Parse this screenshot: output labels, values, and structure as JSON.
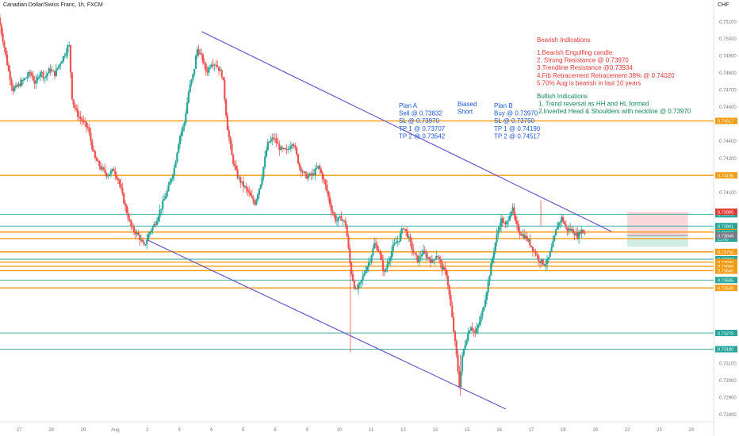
{
  "header": {
    "symbol_title": "Canadian Dollar/Swiss Franc, 1h, FXCM",
    "currency": "CHF"
  },
  "colors": {
    "up": "#26a69a",
    "down": "#ef5350",
    "trendline": "#6a5acd",
    "resistance": "#f39c12",
    "support": "#26a69a",
    "annot_red": "#e53935",
    "annot_blue": "#1e5bd8",
    "annot_green": "#138a5a"
  },
  "chart_data": {
    "type": "candlestick",
    "yaxis": {
      "ticks": [
        "0.75100",
        "0.75000",
        "0.74900",
        "0.74800",
        "0.74700",
        "0.74600",
        "0.74400",
        "0.74300",
        "0.74100",
        "0.73100",
        "0.73000",
        "0.72900",
        "0.72800"
      ],
      "ylim": [
        0.7276,
        0.7516
      ]
    },
    "xaxis": {
      "ticks": [
        {
          "label": "27",
          "day": 0
        },
        {
          "label": "28",
          "day": 1
        },
        {
          "label": "29",
          "day": 2
        },
        {
          "label": "Aug",
          "day": 3
        },
        {
          "label": "2",
          "day": 4
        },
        {
          "label": "3",
          "day": 5
        },
        {
          "label": "4",
          "day": 6
        },
        {
          "label": "5",
          "day": 7
        },
        {
          "label": "6",
          "day": 8
        },
        {
          "label": "9",
          "day": 9
        },
        {
          "label": "10",
          "day": 10
        },
        {
          "label": "11",
          "day": 11
        },
        {
          "label": "12",
          "day": 12
        },
        {
          "label": "13",
          "day": 13
        },
        {
          "label": "15",
          "day": 14
        },
        {
          "label": "16",
          "day": 15
        },
        {
          "label": "17",
          "day": 16
        },
        {
          "label": "18",
          "day": 17
        },
        {
          "label": "19",
          "day": 18
        },
        {
          "label": "22",
          "day": 19
        },
        {
          "label": "23",
          "day": 20
        },
        {
          "label": "24",
          "day": 21
        }
      ],
      "xlim": [
        -0.6,
        21.7
      ]
    },
    "price_path": [
      [
        -0.6,
        0.7512
      ],
      [
        -0.45,
        0.7498
      ],
      [
        -0.3,
        0.7482
      ],
      [
        -0.15,
        0.747
      ],
      [
        0.0,
        0.7472
      ],
      [
        0.2,
        0.7476
      ],
      [
        0.4,
        0.748
      ],
      [
        0.55,
        0.7473
      ],
      [
        0.7,
        0.7481
      ],
      [
        0.85,
        0.7477
      ],
      [
        1.0,
        0.7482
      ],
      [
        1.15,
        0.7479
      ],
      [
        1.3,
        0.7485
      ],
      [
        1.45,
        0.749
      ],
      [
        1.6,
        0.7497
      ],
      [
        1.7,
        0.7464
      ],
      [
        1.85,
        0.7456
      ],
      [
        2.0,
        0.7452
      ],
      [
        2.2,
        0.7447
      ],
      [
        2.4,
        0.743
      ],
      [
        2.6,
        0.7424
      ],
      [
        2.8,
        0.742
      ],
      [
        3.0,
        0.7423
      ],
      [
        3.15,
        0.7417
      ],
      [
        3.35,
        0.7402
      ],
      [
        3.55,
        0.7389
      ],
      [
        3.75,
        0.7385
      ],
      [
        3.95,
        0.7378
      ],
      [
        4.1,
        0.7386
      ],
      [
        4.3,
        0.7392
      ],
      [
        4.5,
        0.7402
      ],
      [
        4.7,
        0.7412
      ],
      [
        4.9,
        0.7425
      ],
      [
        5.05,
        0.7442
      ],
      [
        5.2,
        0.745
      ],
      [
        5.35,
        0.747
      ],
      [
        5.5,
        0.748
      ],
      [
        5.6,
        0.7494
      ],
      [
        5.75,
        0.7489
      ],
      [
        5.9,
        0.748
      ],
      [
        6.05,
        0.7486
      ],
      [
        6.2,
        0.7485
      ],
      [
        6.4,
        0.7478
      ],
      [
        6.55,
        0.7448
      ],
      [
        6.7,
        0.743
      ],
      [
        6.85,
        0.742
      ],
      [
        7.0,
        0.7415
      ],
      [
        7.2,
        0.741
      ],
      [
        7.4,
        0.7403
      ],
      [
        7.6,
        0.7416
      ],
      [
        7.8,
        0.7438
      ],
      [
        8.0,
        0.7442
      ],
      [
        8.2,
        0.7435
      ],
      [
        8.4,
        0.7434
      ],
      [
        8.6,
        0.744
      ],
      [
        8.8,
        0.7425
      ],
      [
        9.0,
        0.7419
      ],
      [
        9.2,
        0.742
      ],
      [
        9.4,
        0.7425
      ],
      [
        9.6,
        0.7415
      ],
      [
        9.8,
        0.74
      ],
      [
        9.95,
        0.7393
      ],
      [
        10.1,
        0.7395
      ],
      [
        10.25,
        0.7391
      ],
      [
        10.4,
        0.7365
      ],
      [
        10.55,
        0.7352
      ],
      [
        10.7,
        0.7356
      ],
      [
        10.85,
        0.7364
      ],
      [
        11.0,
        0.737
      ],
      [
        11.15,
        0.738
      ],
      [
        11.3,
        0.7375
      ],
      [
        11.45,
        0.7362
      ],
      [
        11.6,
        0.7371
      ],
      [
        11.75,
        0.7379
      ],
      [
        11.9,
        0.7382
      ],
      [
        12.05,
        0.739
      ],
      [
        12.2,
        0.7384
      ],
      [
        12.35,
        0.7375
      ],
      [
        12.5,
        0.737
      ],
      [
        12.65,
        0.7375
      ],
      [
        12.8,
        0.7372
      ],
      [
        12.95,
        0.7369
      ],
      [
        13.1,
        0.7374
      ],
      [
        13.25,
        0.7366
      ],
      [
        13.4,
        0.7362
      ],
      [
        13.55,
        0.734
      ],
      [
        13.7,
        0.7316
      ],
      [
        13.8,
        0.7297
      ],
      [
        13.9,
        0.7315
      ],
      [
        14.0,
        0.7323
      ],
      [
        14.15,
        0.7332
      ],
      [
        14.3,
        0.7327
      ],
      [
        14.5,
        0.7338
      ],
      [
        14.65,
        0.7352
      ],
      [
        14.8,
        0.7368
      ],
      [
        14.95,
        0.7383
      ],
      [
        15.1,
        0.7394
      ],
      [
        15.25,
        0.739
      ],
      [
        15.35,
        0.7396
      ],
      [
        15.45,
        0.7401
      ],
      [
        15.55,
        0.7392
      ],
      [
        15.7,
        0.7386
      ],
      [
        15.85,
        0.7384
      ],
      [
        16.0,
        0.738
      ],
      [
        16.15,
        0.7375
      ],
      [
        16.3,
        0.737
      ],
      [
        16.45,
        0.7368
      ],
      [
        16.55,
        0.7369
      ],
      [
        16.7,
        0.7378
      ],
      [
        16.85,
        0.739
      ],
      [
        17.0,
        0.7395
      ],
      [
        17.15,
        0.7388
      ],
      [
        17.3,
        0.7388
      ],
      [
        17.5,
        0.7384
      ],
      [
        17.6,
        0.7388
      ],
      [
        17.7,
        0.7386
      ]
    ],
    "lines": [
      {
        "kind": "trendline",
        "x1": 5.7,
        "y1": 0.7504,
        "x2": 18.5,
        "y2": 0.7387
      },
      {
        "kind": "trendline",
        "x1": 4.0,
        "y1": 0.7382,
        "x2": 15.2,
        "y2": 0.7283
      }
    ],
    "levels": [
      {
        "price": 0.74517,
        "kind": "resistance",
        "label": "0.74517"
      },
      {
        "price": 0.74198,
        "kind": "resistance",
        "label": "0.74198"
      },
      {
        "price": 0.7397,
        "kind": "support",
        "label": "0.73970"
      },
      {
        "price": 0.73901,
        "kind": "support",
        "label": "0.73901"
      },
      {
        "price": 0.73866,
        "kind": "resistance",
        "label": "0.73866"
      },
      {
        "price": 0.73828,
        "kind": "resistance",
        "label": "0.73828"
      },
      {
        "price": 0.7375,
        "kind": "resistance",
        "label": "0.73750"
      },
      {
        "price": 0.73707,
        "kind": "support",
        "label": "0.73707"
      },
      {
        "price": 0.7369,
        "kind": "resistance",
        "label": "0.73690"
      },
      {
        "price": 0.73666,
        "kind": "resistance",
        "label": "0.73666"
      },
      {
        "price": 0.7364,
        "kind": "resistance",
        "label": "0.73640"
      },
      {
        "price": 0.73585,
        "kind": "support",
        "label": "0.73585"
      },
      {
        "price": 0.73539,
        "kind": "resistance",
        "label": "0.73539"
      },
      {
        "price": 0.73275,
        "kind": "support",
        "label": "0.73275"
      },
      {
        "price": 0.7318,
        "kind": "support",
        "label": "0.73180"
      }
    ],
    "price_tags": [
      {
        "price": 0.73985,
        "label": "0.73985",
        "color": "#e53935"
      },
      {
        "price": 0.7386,
        "label": "0.73860",
        "sub": "11:00",
        "color": "#26a69a"
      },
      {
        "price": 0.73846,
        "label": "0.73846",
        "color": "#787b86"
      }
    ],
    "position_box": {
      "x1": 19.0,
      "x2": 20.9,
      "stop_top": 0.73985,
      "entry": 0.73846,
      "target_bottom": 0.7378
    },
    "annotations": {
      "bearish_title": "Bearish Indications",
      "bearish_items": [
        "1.Bearish Engulfing candle",
        "2. Strong Resistance @ 0.73970",
        "3.Trendline Resistance @0.73934",
        "4.Fib Retracement Retracement 38% @ 0.74020",
        "5.70% Aug is bearish in last 10 years"
      ],
      "bullish_title": "Bullish Indications",
      "bullish_items": [
        "1. Trend reversal as HH and HL formed",
        "2.Inverted Head & Shoulders with neckline @ 0.73970"
      ],
      "plan_a": [
        "Plan A",
        "Sell @ 0.73832",
        "SL @ 0.73970",
        "TP 1 @ 0.73707",
        "TP 2 @ 0.73542"
      ],
      "bias": [
        "Biased",
        "Short"
      ],
      "plan_b": [
        "Plan B",
        "Buy @ 0.73970",
        "SL @ 0.73750",
        "TP 1 @ 0.74190",
        "TP 2 @ 0.74517"
      ]
    }
  }
}
